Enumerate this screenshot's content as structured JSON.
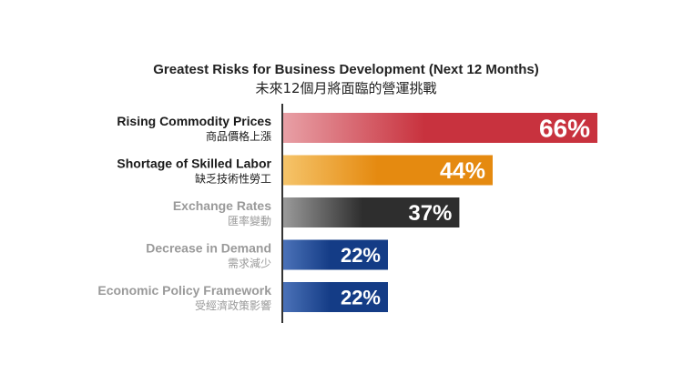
{
  "chart_data": {
    "type": "bar",
    "orientation": "horizontal",
    "title": "Greatest Risks for Business Development (Next 12 Months)",
    "subtitle": "未來12個月將面臨的營運挑戰",
    "categories": [
      "Rising Commodity Prices",
      "Shortage of Skilled Labor",
      "Exchange Rates",
      "Decrease in Demand",
      "Economic Policy Framework"
    ],
    "categories_zh": [
      "商品價格上漲",
      "缺乏技術性勞工",
      "匯率變動",
      "需求減少",
      "受經濟政策影響"
    ],
    "values": [
      66,
      44,
      37,
      22,
      22
    ],
    "value_labels": [
      "66%",
      "44%",
      "37%",
      "22%",
      "22%"
    ],
    "bar_colors": [
      [
        "#e8a0a6",
        "#c8323e"
      ],
      [
        "#f5c46a",
        "#e58a10"
      ],
      [
        "#9a9a9a",
        "#2e2e2e"
      ],
      [
        "#4b72b8",
        "#143c86"
      ],
      [
        "#4b72b8",
        "#143c86"
      ]
    ],
    "label_colors": [
      "#1a1a1a",
      "#1a1a1a",
      "#9a9a9a",
      "#9a9a9a",
      "#9a9a9a"
    ],
    "xlim": [
      0,
      66
    ],
    "grid": false,
    "legend": "none"
  }
}
